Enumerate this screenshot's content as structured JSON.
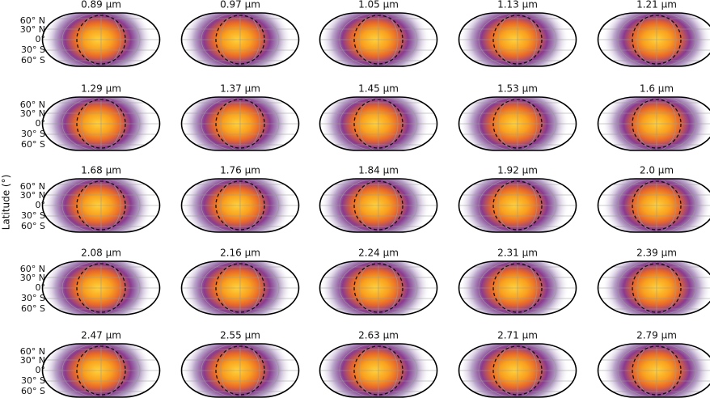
{
  "y_label": "Latitude (°)",
  "lat_labels": [
    "60° N",
    "30° N",
    "0°",
    "30° S",
    "60° S"
  ],
  "panels": [
    {
      "title": "0.89 µm"
    },
    {
      "title": "0.97 µm"
    },
    {
      "title": "1.05 µm"
    },
    {
      "title": "1.13 µm"
    },
    {
      "title": "1.21 µm"
    },
    {
      "title": "1.29 µm"
    },
    {
      "title": "1.37 µm"
    },
    {
      "title": "1.45 µm"
    },
    {
      "title": "1.53 µm"
    },
    {
      "title": "1.6 µm"
    },
    {
      "title": "1.68 µm"
    },
    {
      "title": "1.76 µm"
    },
    {
      "title": "1.84 µm"
    },
    {
      "title": "1.92 µm"
    },
    {
      "title": "2.0 µm"
    },
    {
      "title": "2.08 µm"
    },
    {
      "title": "2.16 µm"
    },
    {
      "title": "2.24 µm"
    },
    {
      "title": "2.31 µm"
    },
    {
      "title": "2.39 µm"
    },
    {
      "title": "2.47 µm"
    },
    {
      "title": "2.55 µm"
    },
    {
      "title": "2.63 µm"
    },
    {
      "title": "2.71 µm"
    },
    {
      "title": "2.79 µm"
    }
  ]
}
